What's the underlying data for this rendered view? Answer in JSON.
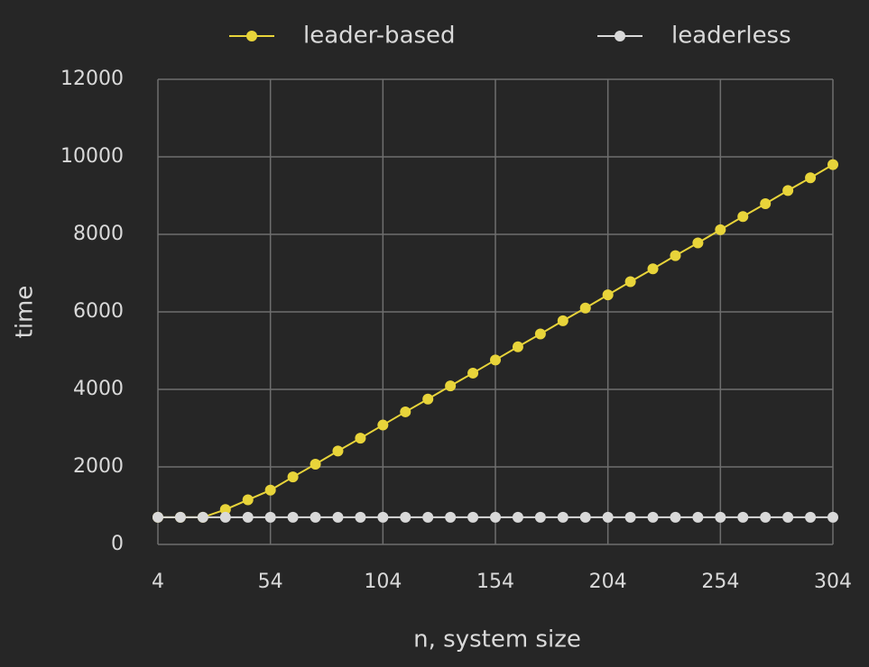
{
  "chart_data": {
    "type": "line",
    "x": [
      4,
      14,
      24,
      34,
      44,
      54,
      64,
      74,
      84,
      94,
      104,
      114,
      124,
      134,
      144,
      154,
      164,
      174,
      184,
      194,
      204,
      214,
      224,
      234,
      244,
      254,
      264,
      274,
      284,
      294,
      304
    ],
    "series": [
      {
        "name": "leader-based",
        "color": "#e8d43a",
        "values": [
          700,
          700,
          700,
          900,
          1150,
          1400,
          1740,
          2070,
          2410,
          2740,
          3080,
          3420,
          3750,
          4090,
          4420,
          4760,
          5100,
          5430,
          5770,
          6100,
          6440,
          6780,
          7110,
          7450,
          7780,
          8120,
          8460,
          8790,
          9130,
          9460,
          9800
        ]
      },
      {
        "name": "leaderless",
        "color": "#d9d9d9",
        "values": [
          700,
          700,
          700,
          700,
          700,
          700,
          700,
          700,
          700,
          700,
          700,
          700,
          700,
          700,
          700,
          700,
          700,
          700,
          700,
          700,
          700,
          700,
          700,
          700,
          700,
          700,
          700,
          700,
          700,
          700,
          700
        ]
      }
    ],
    "xlabel": "n, system size",
    "ylabel": "time",
    "xlim": [
      4,
      304
    ],
    "xticks": [
      4,
      54,
      104,
      154,
      204,
      254,
      304
    ],
    "ylim": [
      0,
      12000
    ],
    "yticks": [
      0,
      2000,
      4000,
      6000,
      8000,
      10000,
      12000
    ],
    "grid": true,
    "legend": "top"
  }
}
